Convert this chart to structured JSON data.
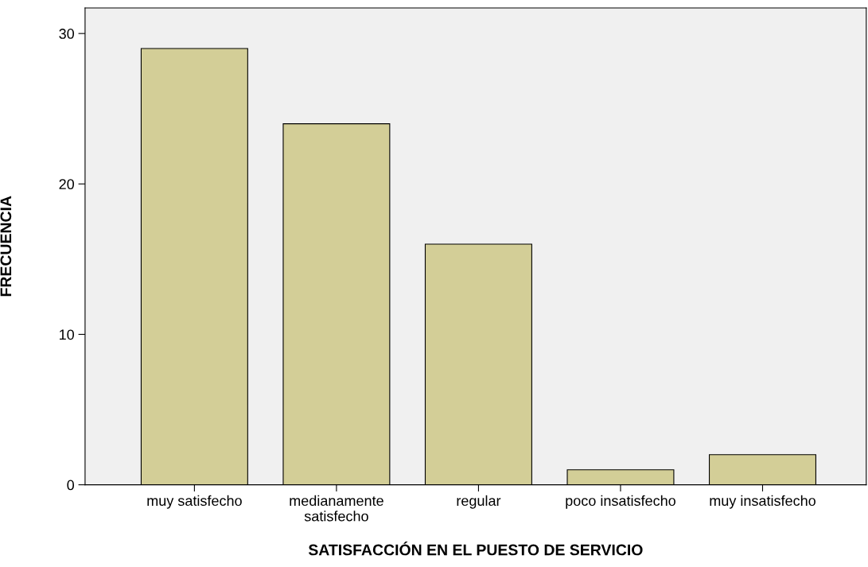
{
  "chart_data": {
    "type": "bar",
    "xlabel": "SATISFACCIÓN EN EL PUESTO DE SERVICIO",
    "ylabel": "FRECUENCIA",
    "categories": [
      "muy satisfecho",
      "medianamente\nsatisfecho",
      "regular",
      "poco insatisfecho",
      "muy insatisfecho"
    ],
    "values": [
      29,
      24,
      16,
      1,
      2
    ],
    "color": "#d3ce97",
    "ylim": [
      0,
      31.7
    ],
    "yticks": [
      0,
      10,
      20,
      30
    ],
    "grid": false,
    "legend": false
  }
}
